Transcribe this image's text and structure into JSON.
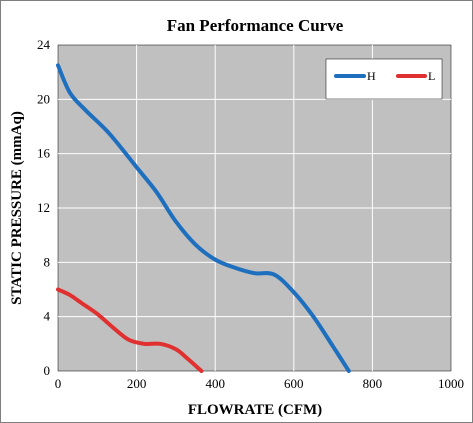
{
  "chart_data": {
    "type": "line",
    "title": "Fan Performance Curve",
    "xlabel": "FLOWRATE (CFM)",
    "ylabel": "STATIC PRESSURE (mmAq)",
    "xlim": [
      0,
      1000
    ],
    "ylim": [
      0,
      24
    ],
    "xticks": [
      0,
      200,
      400,
      600,
      800,
      1000
    ],
    "yticks": [
      0,
      4,
      8,
      12,
      16,
      20,
      24
    ],
    "grid": true,
    "plot_background": "#c0c0c0",
    "legend_position": "top-right",
    "series": [
      {
        "name": "H",
        "color": "#1f6fbf",
        "x": [
          0,
          30,
          70,
          130,
          200,
          250,
          300,
          350,
          400,
          450,
          500,
          550,
          600,
          650,
          700,
          740
        ],
        "y": [
          22.5,
          20.5,
          19.2,
          17.5,
          15,
          13.2,
          11,
          9.3,
          8.2,
          7.6,
          7.2,
          7.1,
          5.8,
          4.0,
          1.8,
          0
        ]
      },
      {
        "name": "L",
        "color": "#e03030",
        "x": [
          0,
          30,
          60,
          100,
          140,
          180,
          220,
          260,
          300,
          330,
          365
        ],
        "y": [
          6.0,
          5.6,
          5.0,
          4.2,
          3.2,
          2.3,
          2.0,
          2.0,
          1.6,
          0.9,
          0
        ]
      }
    ]
  }
}
